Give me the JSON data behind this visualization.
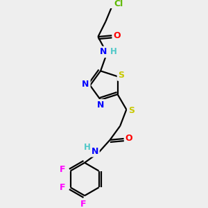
{
  "bg_color": "#eeeeee",
  "atom_colors": {
    "Cl": "#5cb800",
    "O": "#ff0000",
    "N": "#0000ff",
    "S": "#c8c800",
    "F": "#ff00ff",
    "H": "#4fc8c8",
    "C": "#000000"
  },
  "figsize": [
    3.0,
    3.0
  ],
  "dpi": 100
}
